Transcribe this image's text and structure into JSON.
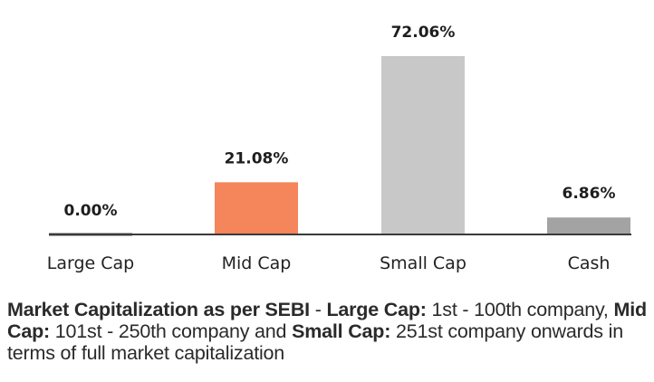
{
  "chart_data": {
    "type": "bar",
    "title": "",
    "xlabel": "",
    "ylabel": "",
    "categories": [
      "Large Cap",
      "Mid Cap",
      "Small Cap",
      "Cash"
    ],
    "values": [
      0.0,
      21.08,
      72.06,
      6.86
    ],
    "value_labels": [
      "0.00%",
      "21.08%",
      "72.06%",
      "6.86%"
    ],
    "colors": [
      "#555555",
      "#f5855a",
      "#c8c8c8",
      "#a3a3a3"
    ],
    "ylim": [
      0,
      80
    ],
    "grid": false,
    "legend": "none",
    "axis_color": "#3a3a3a"
  },
  "note": {
    "segments": [
      {
        "text": "Market Capitalization as per SEBI",
        "bold": true
      },
      {
        "text": " - ",
        "bold": false
      },
      {
        "text": "Large Cap:",
        "bold": true
      },
      {
        "text": " 1st - 100th company, ",
        "bold": false
      },
      {
        "text": "Mid Cap:",
        "bold": true
      },
      {
        "text": " 101st - 250th company and ",
        "bold": false
      },
      {
        "text": "Small Cap:",
        "bold": true
      },
      {
        "text": " 251st company onwards in terms of full market capitalization",
        "bold": false
      }
    ]
  }
}
